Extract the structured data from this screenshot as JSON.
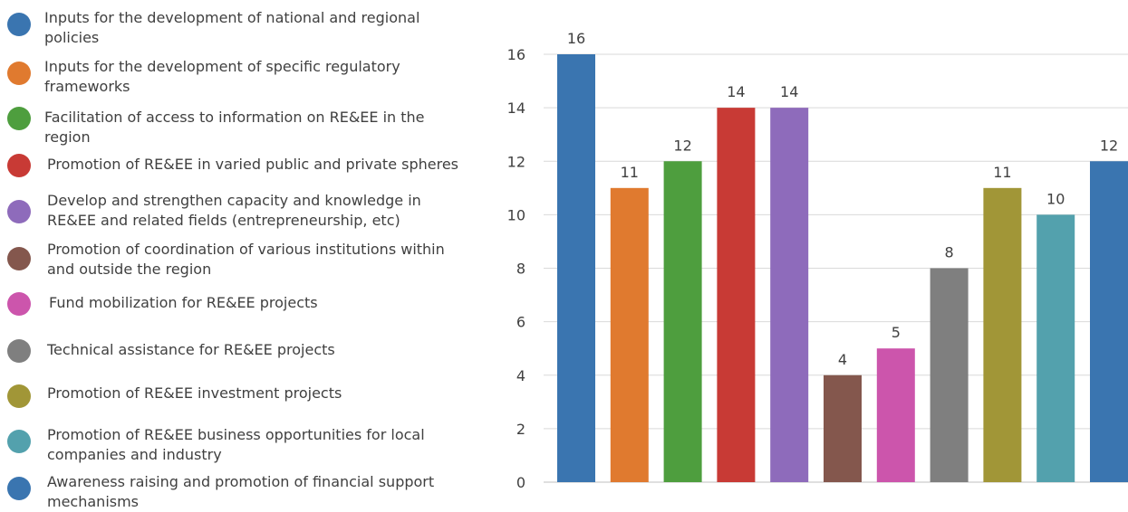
{
  "legend": {
    "items": [
      {
        "label": "Inputs for the development of national and regional policies",
        "color": "#3a75b0"
      },
      {
        "label": "Inputs for the development of specific regulatory frameworks",
        "color": "#e07a2f"
      },
      {
        "label": "Facilitation of access to information on RE&EE in the region",
        "color": "#4e9e3e"
      },
      {
        "label": "Promotion of RE&EE in varied public and private spheres",
        "color": "#c83a35"
      },
      {
        "label": "Develop and strengthen capacity and knowledge in RE&EE and related fields (entrepreneurship, etc)",
        "color": "#8e6bbb"
      },
      {
        "label": "Promotion of coordination of various institutions within and outside the region",
        "color": "#84574d"
      },
      {
        "label": "Fund mobilization for RE&EE projects",
        "color": "#cc55ac"
      },
      {
        "label": "Technical assistance for RE&EE projects",
        "color": "#7f7f7f"
      },
      {
        "label": "Promotion of RE&EE investment projects",
        "color": "#a19637"
      },
      {
        "label": "Promotion of RE&EE business opportunities for local companies and industry",
        "color": "#53a1ad"
      },
      {
        "label": "Awareness raising and promotion of financial support mechanisms",
        "color": "#3a75b0"
      }
    ]
  },
  "chart_data": {
    "type": "bar",
    "title": "",
    "xlabel": "",
    "ylabel": "",
    "ylim": [
      0,
      16
    ],
    "yticks": [
      0,
      2,
      4,
      6,
      8,
      10,
      12,
      14,
      16
    ],
    "grid": "horizontal",
    "legend_position": "left",
    "categories": [
      "Inputs for the development of national and regional policies",
      "Inputs for the development of specific regulatory frameworks",
      "Facilitation of access to information on RE&EE in the region",
      "Promotion of RE&EE in varied public and private spheres",
      "Develop and strengthen capacity and knowledge in RE&EE and related fields (entrepreneurship, etc)",
      "Promotion of coordination of various institutions within and outside the region",
      "Fund mobilization for RE&EE projects",
      "Technical assistance for RE&EE projects",
      "Promotion of RE&EE investment projects",
      "Promotion of RE&EE business opportunities for local companies and industry",
      "Awareness raising and promotion of financial support mechanisms"
    ],
    "values": [
      16,
      11,
      12,
      14,
      14,
      4,
      5,
      8,
      11,
      10,
      12
    ],
    "colors": [
      "#3a75b0",
      "#e07a2f",
      "#4e9e3e",
      "#c83a35",
      "#8e6bbb",
      "#84574d",
      "#cc55ac",
      "#7f7f7f",
      "#a19637",
      "#53a1ad",
      "#3a75b0"
    ],
    "data_labels": true
  }
}
